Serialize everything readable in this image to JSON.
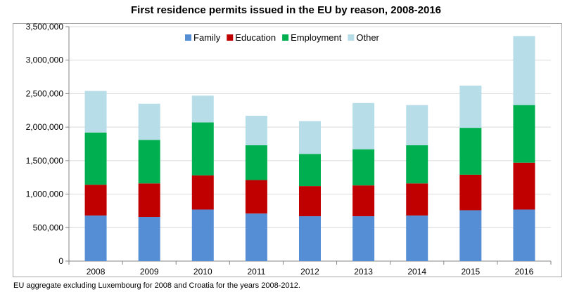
{
  "chart_data": {
    "type": "bar",
    "stacked": true,
    "title": "First residence permits issued in the EU by reason, 2008-2016",
    "categories": [
      "2008",
      "2009",
      "2010",
      "2011",
      "2012",
      "2013",
      "2014",
      "2015",
      "2016"
    ],
    "series": [
      {
        "name": "Family",
        "color": "#558ed5",
        "values": [
          680000,
          660000,
          770000,
          710000,
          670000,
          670000,
          680000,
          760000,
          770000
        ]
      },
      {
        "name": "Education",
        "color": "#c00000",
        "values": [
          460000,
          500000,
          510000,
          500000,
          450000,
          460000,
          480000,
          530000,
          700000
        ]
      },
      {
        "name": "Employment",
        "color": "#00b050",
        "values": [
          780000,
          650000,
          790000,
          520000,
          480000,
          540000,
          570000,
          700000,
          860000
        ]
      },
      {
        "name": "Other",
        "color": "#b7dee8",
        "values": [
          620000,
          540000,
          400000,
          440000,
          490000,
          690000,
          600000,
          630000,
          1030000
        ]
      }
    ],
    "ylim": [
      0,
      3500000
    ],
    "yticks": [
      "0",
      "500,000",
      "1,000,000",
      "1,500,000",
      "2,000,000",
      "2,500,000",
      "3,000,000",
      "3,500,000"
    ],
    "grid": true,
    "legend_position": "top-center"
  },
  "footnote": "EU aggregate excluding Luxembourg for 2008 and Croatia for the years 2008-2012."
}
